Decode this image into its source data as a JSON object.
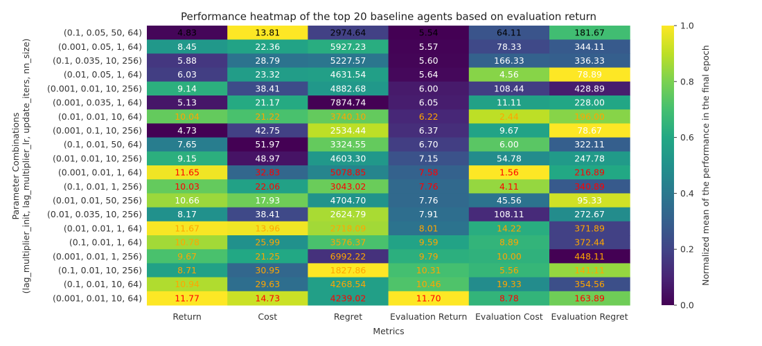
{
  "chart_data": {
    "type": "heatmap",
    "title": "Performance heatmap of the top 20 baseline agents based on evaluation return",
    "xlabel": "Metrics",
    "ylabel_line1": "Parameter Combinations",
    "ylabel_line2": "(lag_multiplier_init, lag_multiplier_lr, update_iters, nn_size)",
    "colorbar_label": "Normalized mean of the performance in the final epoch",
    "colorbar_ticks": [
      "0.0",
      "0.2",
      "0.4",
      "0.6",
      "0.8",
      "1.0"
    ],
    "colormap": "viridis",
    "columns": [
      "Return",
      "Cost",
      "Regret",
      "Evaluation Return",
      "Evaluation Cost",
      "Evaluation Regret"
    ],
    "rows": [
      "(0.1, 0.05, 50, 64)",
      "(0.001, 0.05, 1, 64)",
      "(0.1, 0.035, 10, 256)",
      "(0.01, 0.05, 1, 64)",
      "(0.001, 0.01, 10, 256)",
      "(0.001, 0.035, 1, 64)",
      "(0.01, 0.01, 10, 64)",
      "(0.001, 0.1, 10, 256)",
      "(0.1, 0.01, 50, 64)",
      "(0.01, 0.01, 10, 256)",
      "(0.001, 0.01, 1, 64)",
      "(0.1, 0.01, 1, 256)",
      "(0.01, 0.01, 50, 256)",
      "(0.01, 0.035, 10, 256)",
      "(0.01, 0.01, 1, 64)",
      "(0.1, 0.01, 1, 64)",
      "(0.001, 0.01, 1, 256)",
      "(0.1, 0.01, 10, 256)",
      "(0.1, 0.01, 10, 64)",
      "(0.001, 0.01, 10, 64)"
    ],
    "values": [
      [
        "4.83",
        "13.81",
        "2974.64",
        "5.54",
        "64.11",
        "181.67"
      ],
      [
        "8.45",
        "22.36",
        "5927.23",
        "5.57",
        "78.33",
        "344.11"
      ],
      [
        "5.88",
        "28.79",
        "5227.57",
        "5.60",
        "166.33",
        "336.33"
      ],
      [
        "6.03",
        "23.32",
        "4631.54",
        "5.64",
        "4.56",
        "78.89"
      ],
      [
        "9.14",
        "38.41",
        "4882.68",
        "6.00",
        "108.44",
        "428.89"
      ],
      [
        "5.13",
        "21.17",
        "7874.74",
        "6.05",
        "11.11",
        "228.00"
      ],
      [
        "10.04",
        "21.22",
        "3740.10",
        "6.22",
        "2.44",
        "196.00"
      ],
      [
        "4.73",
        "42.75",
        "2534.44",
        "6.37",
        "9.67",
        "78.67"
      ],
      [
        "7.65",
        "51.97",
        "3324.55",
        "6.70",
        "6.00",
        "322.11"
      ],
      [
        "9.15",
        "48.97",
        "4603.30",
        "7.15",
        "54.78",
        "247.78"
      ],
      [
        "11.65",
        "32.83",
        "5078.85",
        "7.58",
        "1.56",
        "216.89"
      ],
      [
        "10.03",
        "22.06",
        "3043.02",
        "7.76",
        "4.11",
        "340.89"
      ],
      [
        "10.66",
        "17.93",
        "4704.70",
        "7.76",
        "45.56",
        "95.33"
      ],
      [
        "8.17",
        "38.41",
        "2624.79",
        "7.91",
        "108.11",
        "272.67"
      ],
      [
        "11.67",
        "13.96",
        "2718.09",
        "8.01",
        "14.22",
        "371.89"
      ],
      [
        "10.78",
        "25.99",
        "3576.37",
        "9.59",
        "8.89",
        "372.44"
      ],
      [
        "9.67",
        "21.25",
        "6992.22",
        "9.79",
        "10.00",
        "448.11"
      ],
      [
        "8.71",
        "30.95",
        "1827.86",
        "10.31",
        "5.56",
        "141.11"
      ],
      [
        "10.94",
        "29.63",
        "4268.54",
        "10.46",
        "19.33",
        "354.56"
      ],
      [
        "11.77",
        "14.73",
        "4239.02",
        "11.70",
        "8.78",
        "163.89"
      ]
    ],
    "normalized": [
      [
        0.015,
        1.0,
        0.19,
        0.0,
        0.26,
        0.69
      ],
      [
        0.53,
        0.58,
        0.62,
        0.005,
        0.22,
        0.28
      ],
      [
        0.16,
        0.38,
        0.39,
        0.01,
        0.31,
        0.3
      ],
      [
        0.18,
        0.55,
        0.56,
        0.02,
        0.82,
        1.0
      ],
      [
        0.63,
        0.23,
        0.53,
        0.07,
        0.18,
        0.08
      ],
      [
        0.06,
        0.61,
        0.0,
        0.08,
        0.57,
        0.59
      ],
      [
        0.76,
        0.71,
        0.76,
        0.11,
        0.9,
        0.82
      ],
      [
        0.0,
        0.19,
        0.9,
        0.13,
        0.58,
        1.0
      ],
      [
        0.42,
        0.0,
        0.76,
        0.18,
        0.74,
        0.3
      ],
      [
        0.63,
        0.05,
        0.53,
        0.25,
        0.48,
        0.54
      ],
      [
        0.98,
        0.33,
        0.45,
        0.31,
        1.0,
        0.6
      ],
      [
        0.76,
        0.57,
        0.77,
        0.34,
        0.84,
        0.28
      ],
      [
        0.85,
        0.78,
        0.51,
        0.34,
        0.38,
        0.93
      ],
      [
        0.5,
        0.22,
        0.87,
        0.36,
        0.12,
        0.48
      ],
      [
        0.99,
        0.98,
        0.86,
        0.38,
        0.62,
        0.19
      ],
      [
        0.86,
        0.5,
        0.71,
        0.58,
        0.65,
        0.19
      ],
      [
        0.71,
        0.6,
        0.14,
        0.63,
        0.64,
        0.0
      ],
      [
        0.57,
        0.33,
        1.0,
        0.7,
        0.66,
        0.84
      ],
      [
        0.88,
        0.36,
        0.56,
        0.72,
        0.48,
        0.24
      ],
      [
        1.0,
        0.92,
        0.56,
        1.0,
        0.65,
        0.78
      ]
    ],
    "text_colors": [
      [
        "black",
        "black",
        "black",
        "black",
        "black",
        "black"
      ],
      [
        "white",
        "white",
        "white",
        "white",
        "white",
        "white"
      ],
      [
        "white",
        "white",
        "white",
        "white",
        "white",
        "white"
      ],
      [
        "white",
        "white",
        "white",
        "white",
        "white",
        "white"
      ],
      [
        "white",
        "white",
        "white",
        "white",
        "white",
        "white"
      ],
      [
        "white",
        "white",
        "white",
        "white",
        "white",
        "white"
      ],
      [
        "orange",
        "orange",
        "orange",
        "orange",
        "orange",
        "orange"
      ],
      [
        "white",
        "white",
        "white",
        "white",
        "white",
        "white"
      ],
      [
        "white",
        "white",
        "white",
        "white",
        "white",
        "white"
      ],
      [
        "white",
        "white",
        "white",
        "white",
        "white",
        "white"
      ],
      [
        "red",
        "red",
        "red",
        "red",
        "red",
        "red"
      ],
      [
        "red",
        "red",
        "red",
        "red",
        "red",
        "red"
      ],
      [
        "white",
        "white",
        "white",
        "white",
        "white",
        "white"
      ],
      [
        "white",
        "white",
        "white",
        "white",
        "white",
        "white"
      ],
      [
        "orange",
        "orange",
        "orange",
        "orange",
        "orange",
        "orange"
      ],
      [
        "orange",
        "orange",
        "orange",
        "orange",
        "orange",
        "orange"
      ],
      [
        "orange",
        "orange",
        "orange",
        "orange",
        "orange",
        "orange"
      ],
      [
        "orange",
        "orange",
        "orange",
        "orange",
        "orange",
        "orange"
      ],
      [
        "orange",
        "orange",
        "orange",
        "orange",
        "orange",
        "orange"
      ],
      [
        "red",
        "red",
        "red",
        "red",
        "red",
        "red"
      ]
    ],
    "colors": {
      "black": "#000000",
      "white": "#ffffff",
      "orange": "#ffa500",
      "red": "#ff0000"
    },
    "vmin": 0.0,
    "vmax": 1.0
  }
}
